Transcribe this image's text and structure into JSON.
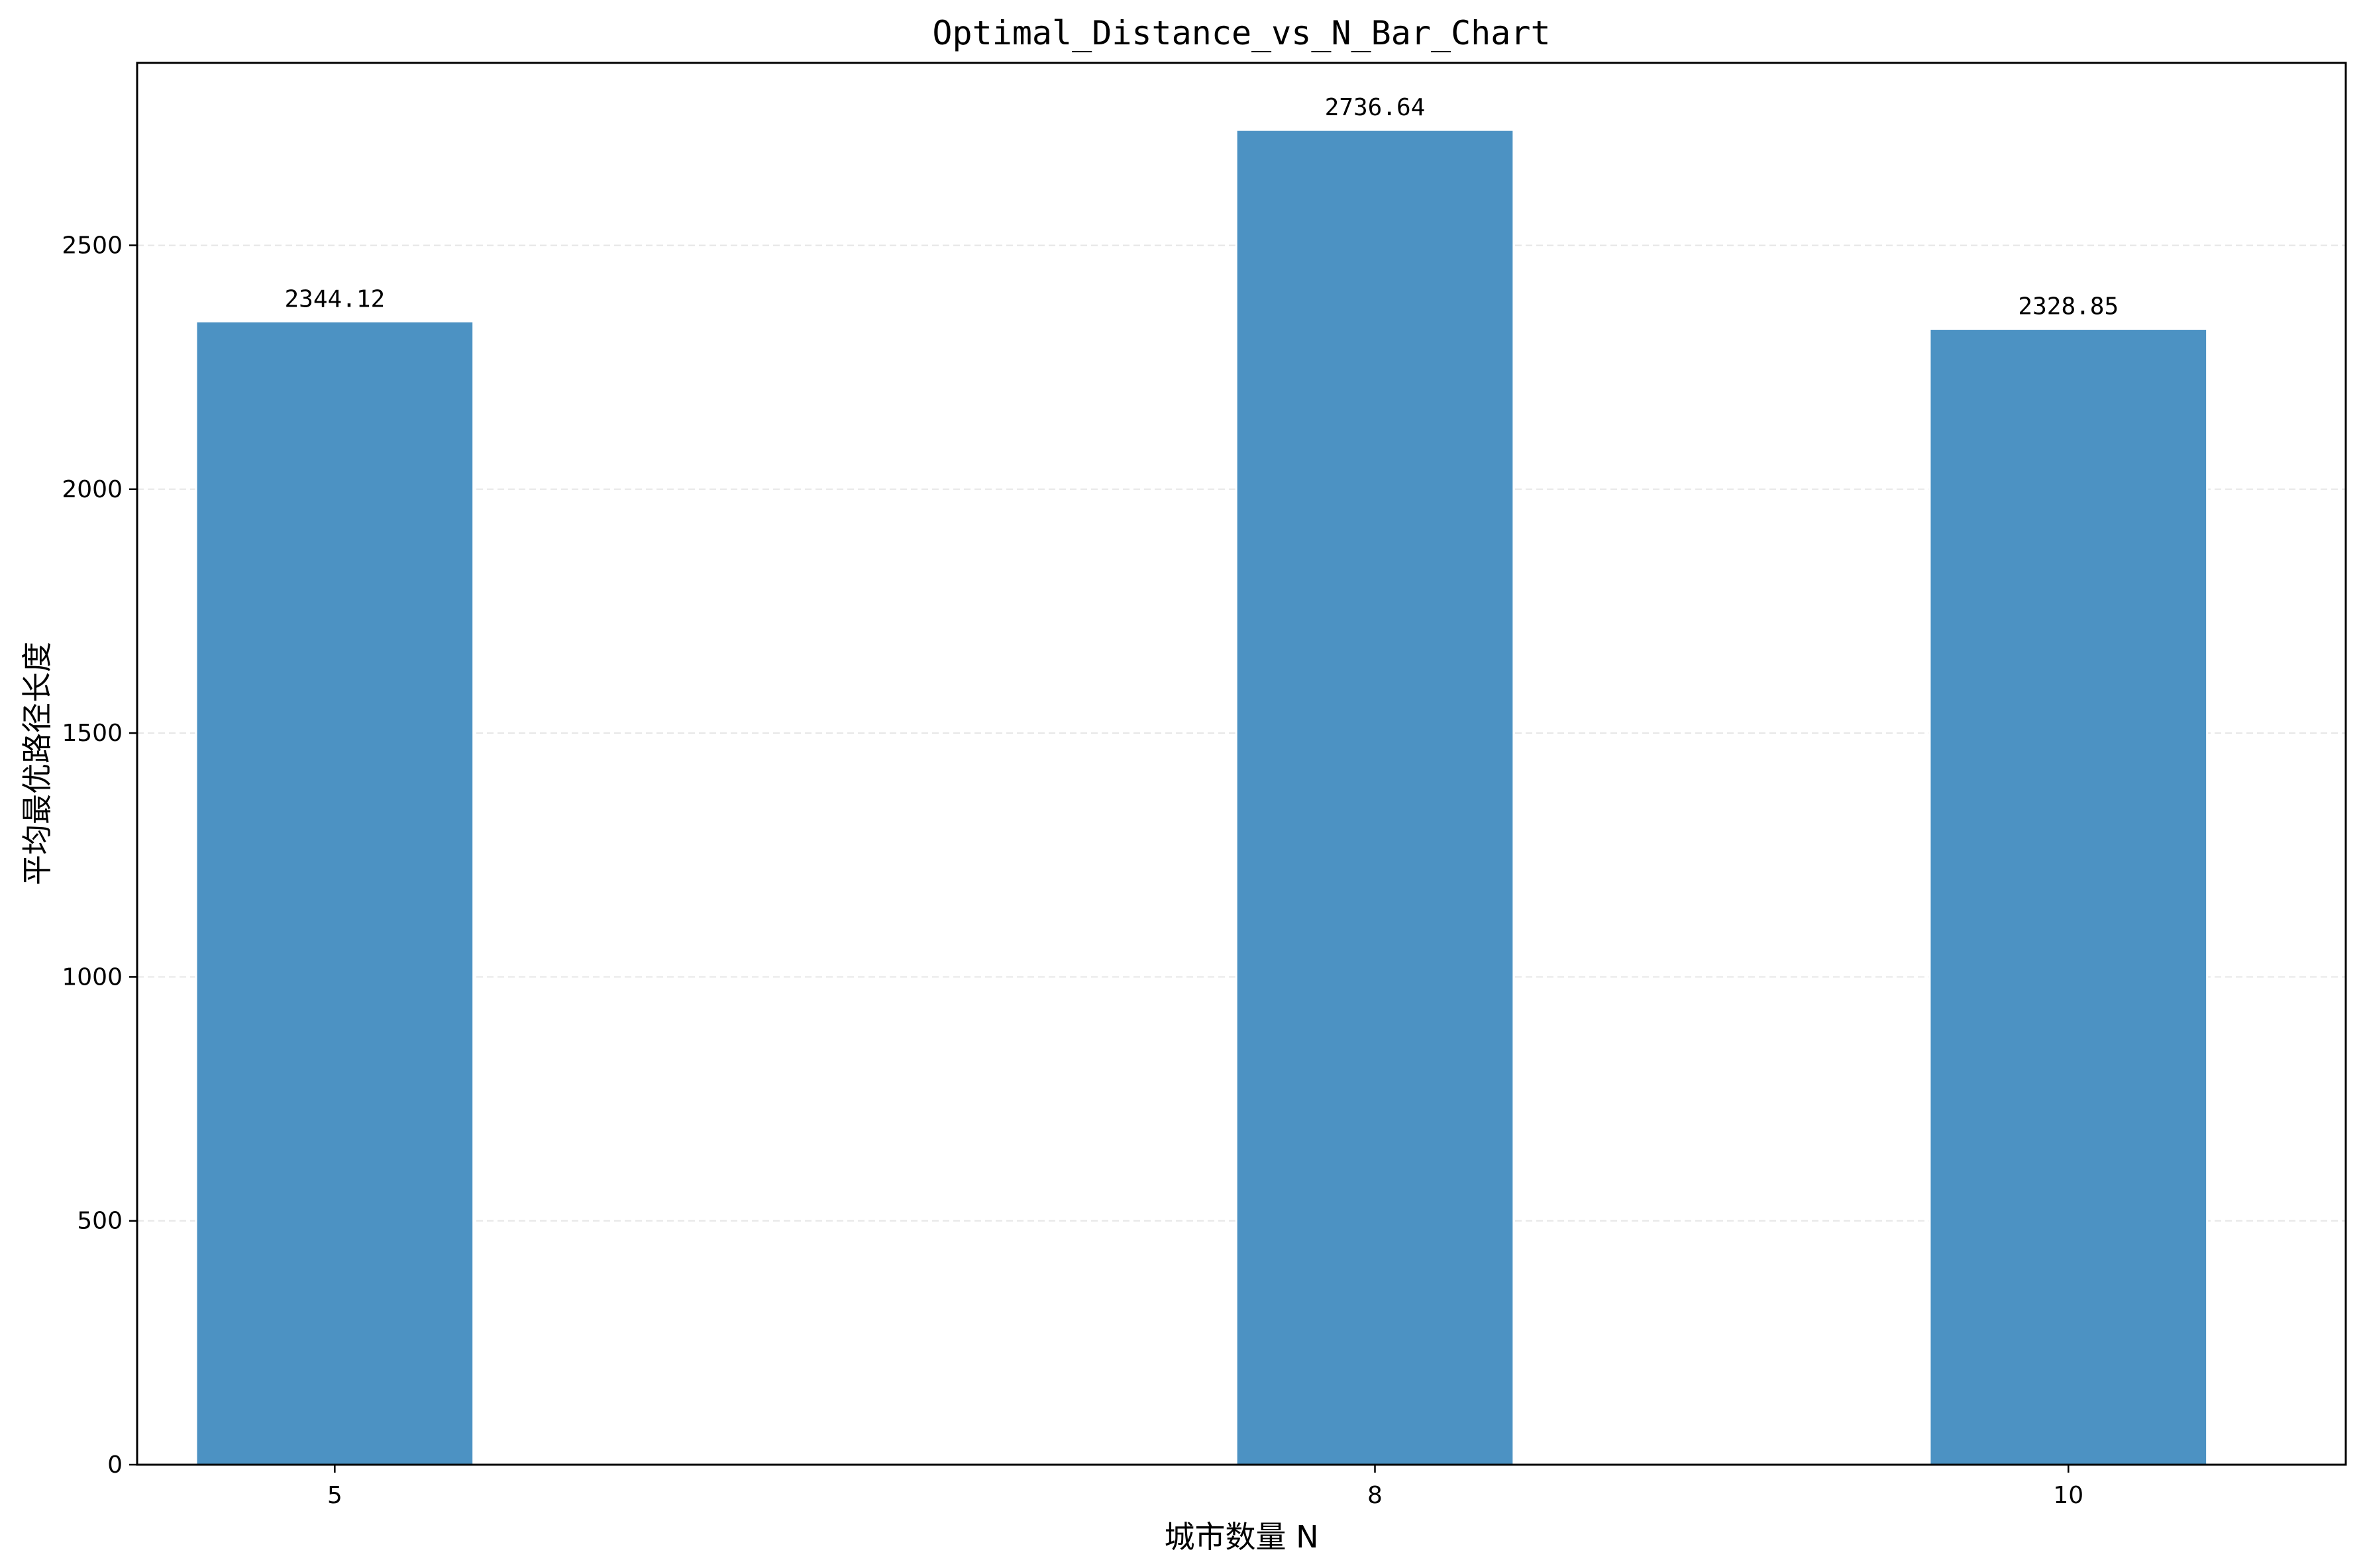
{
  "chart_data": {
    "type": "bar",
    "title": "Optimal_Distance_vs_N_Bar_Chart",
    "xlabel": "城市数量 N",
    "ylabel": "平均最优路径长度",
    "categories": [
      "5",
      "8",
      "10"
    ],
    "x": [
      5,
      8,
      10
    ],
    "values": [
      2344.12,
      2736.64,
      2328.85
    ],
    "value_labels": [
      "2344.12",
      "2736.64",
      "2328.85"
    ],
    "xlim": [
      4.43,
      10.8
    ],
    "ylim": [
      0,
      2873.97
    ],
    "yticks": [
      0,
      500,
      1000,
      1500,
      2000,
      2500
    ],
    "ytick_labels": [
      "0",
      "500",
      "1000",
      "1500",
      "2000",
      "2500"
    ],
    "bar_width": 0.8,
    "grid": "y-dashed-light",
    "legend": "none",
    "bar_color": "#4c92c3",
    "grid_color": "#e6e6e6"
  }
}
